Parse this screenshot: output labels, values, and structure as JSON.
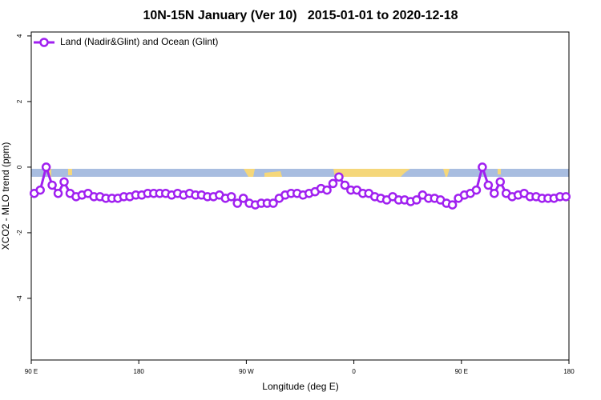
{
  "chart_data": {
    "type": "line",
    "title": "10N-15N January (Ver 10)   2015-01-01 to 2020-12-18",
    "xlabel": "Longitude (deg E)",
    "ylabel": "XCO2 - MLO trend (ppm)",
    "xlim": [
      90,
      540
    ],
    "ylim": [
      -5.88,
      4.12
    ],
    "xticks": [
      {
        "value": 90,
        "label": "90 E"
      },
      {
        "value": 180,
        "label": "180"
      },
      {
        "value": 270,
        "label": "90 W"
      },
      {
        "value": 360,
        "label": "0"
      },
      {
        "value": 450,
        "label": "90 E"
      },
      {
        "value": 540,
        "label": "180"
      }
    ],
    "yticks": [
      4,
      2,
      0,
      -2,
      -4
    ],
    "legend": "top-left",
    "x": [
      92.5,
      97.5,
      102.5,
      107.5,
      112.5,
      117.5,
      122.5,
      127.5,
      132.5,
      137.5,
      142.5,
      147.5,
      152.5,
      157.5,
      162.5,
      167.5,
      172.5,
      177.5,
      182.5,
      187.5,
      192.5,
      197.5,
      202.5,
      207.5,
      212.5,
      217.5,
      222.5,
      227.5,
      232.5,
      237.5,
      242.5,
      247.5,
      252.5,
      257.5,
      262.5,
      267.5,
      272.5,
      277.5,
      282.5,
      287.5,
      292.5,
      297.5,
      302.5,
      307.5,
      312.5,
      317.5,
      322.5,
      327.5,
      332.5,
      337.5,
      342.5,
      347.5,
      352.5,
      357.5,
      362.5,
      367.5,
      372.5,
      377.5,
      382.5,
      387.5,
      392.5,
      397.5,
      402.5,
      407.5,
      412.5,
      417.5,
      422.5,
      427.5,
      432.5,
      437.5,
      442.5,
      447.5,
      452.5,
      457.5,
      462.5,
      467.5,
      472.5,
      477.5,
      482.5,
      487.5,
      492.5,
      497.5,
      502.5,
      507.5,
      512.5,
      517.5,
      522.5,
      527.5,
      532.5,
      537.5
    ],
    "series": [
      {
        "name": "Land (Nadir&Glint) and Ocean (Glint)",
        "color": "#a020f0",
        "values": [
          -0.8,
          -0.7,
          0.0,
          -0.55,
          -0.8,
          -0.45,
          -0.8,
          -0.9,
          -0.85,
          -0.8,
          -0.9,
          -0.9,
          -0.95,
          -0.95,
          -0.95,
          -0.9,
          -0.9,
          -0.85,
          -0.85,
          -0.8,
          -0.8,
          -0.8,
          -0.8,
          -0.85,
          -0.8,
          -0.85,
          -0.8,
          -0.85,
          -0.85,
          -0.9,
          -0.9,
          -0.85,
          -0.95,
          -0.9,
          -1.1,
          -0.95,
          -1.1,
          -1.15,
          -1.1,
          -1.1,
          -1.1,
          -0.95,
          -0.85,
          -0.8,
          -0.8,
          -0.85,
          -0.8,
          -0.75,
          -0.65,
          -0.7,
          -0.5,
          -0.3,
          -0.55,
          -0.7,
          -0.7,
          -0.8,
          -0.8,
          -0.9,
          -0.95,
          -1.0,
          -0.9,
          -1.0,
          -1.0,
          -1.05,
          -1.0,
          -0.85,
          -0.95,
          -0.95,
          -1.0,
          -1.1,
          -1.15,
          -0.95,
          -0.85,
          -0.8,
          -0.7,
          0.0,
          -0.55,
          -0.8,
          -0.45,
          -0.8,
          -0.9,
          -0.85,
          -0.8,
          -0.9,
          -0.9,
          -0.95,
          -0.95,
          -0.95,
          -0.9,
          -0.9
        ]
      }
    ]
  }
}
